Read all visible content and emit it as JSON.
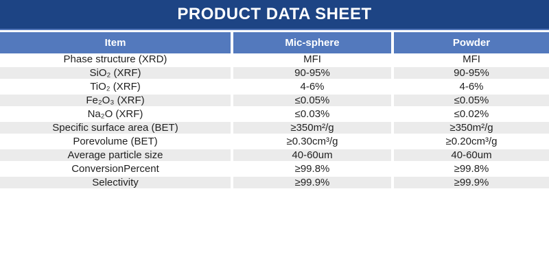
{
  "header": {
    "title": "PRODUCT DATA SHEET"
  },
  "colors": {
    "banner": "#1D4484",
    "bannerline": "#5075B8",
    "headrow": "#5379BD",
    "rowalt": "#EBEBEB",
    "bodytext": "#1F1F1F"
  },
  "table": {
    "columns": [
      "Item",
      "Mic-sphere",
      "Powder"
    ],
    "rows": [
      {
        "item": "Phase structure (XRD)",
        "mic_sphere": "MFI",
        "powder": "MFI"
      },
      {
        "item": "SiO₂ (XRF)",
        "mic_sphere": "90-95%",
        "powder": "90-95%"
      },
      {
        "item": "TiO₂ (XRF)",
        "mic_sphere": "4-6%",
        "powder": "4-6%"
      },
      {
        "item": "Fe₂O₃ (XRF)",
        "mic_sphere": "≤0.05%",
        "powder": "≤0.05%"
      },
      {
        "item": "Na₂O (XRF)",
        "mic_sphere": "≤0.03%",
        "powder": "≤0.02%"
      },
      {
        "item": "Specific surface area (BET)",
        "mic_sphere": "≥350m²/g",
        "powder": "≥350m²/g"
      },
      {
        "item": "Porevolume (BET)",
        "mic_sphere": "≥0.30cm³/g",
        "powder": "≥0.20cm³/g"
      },
      {
        "item": "Average particle size",
        "mic_sphere": "40-60um",
        "powder": "40-60um"
      },
      {
        "item": "ConversionPercent",
        "mic_sphere": "≥99.8%",
        "powder": "≥99.8%"
      },
      {
        "item": "Selectivity",
        "mic_sphere": "≥99.9%",
        "powder": "≥99.9%"
      }
    ]
  }
}
